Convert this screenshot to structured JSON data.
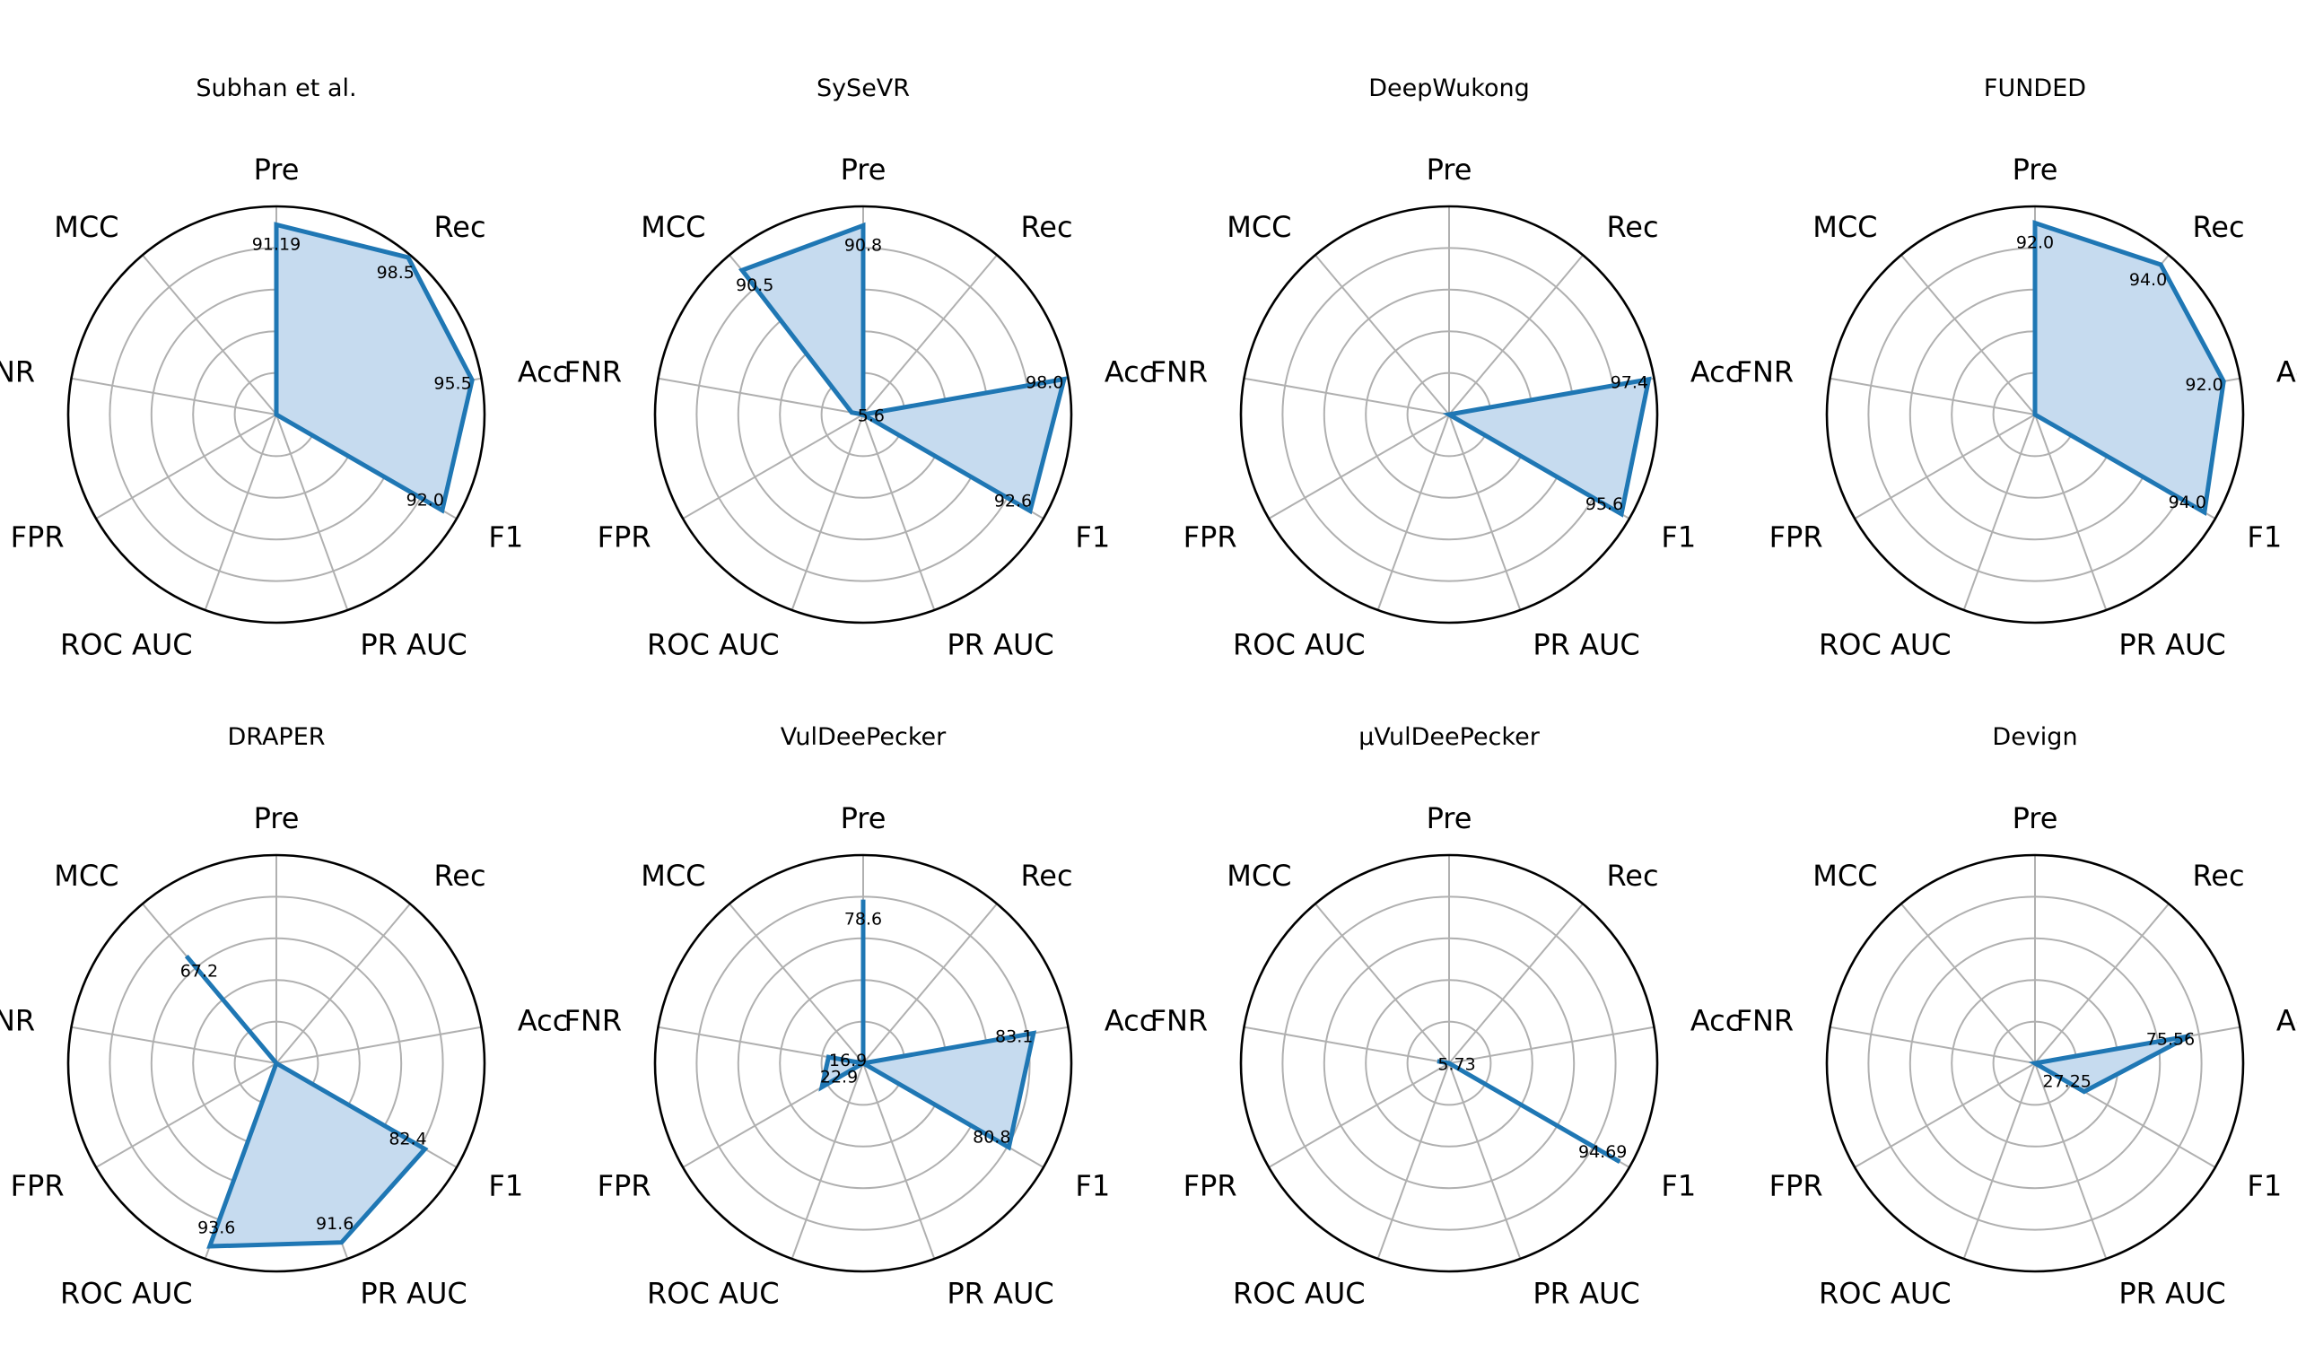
{
  "figure": {
    "background": "#ffffff",
    "series_color": "#1f77b4",
    "fill_color": "#c6dbef"
  },
  "chart_data": [
    {
      "type": "radar",
      "title": "Subhan et al.",
      "axes": [
        "Pre",
        "Rec",
        "Acc",
        "F1",
        "PR AUC",
        "ROC AUC",
        "FPR",
        "FNR",
        "MCC"
      ],
      "rlim": [
        0,
        100
      ],
      "values": [
        91.19,
        98.5,
        95.5,
        92.0,
        null,
        null,
        null,
        null,
        null
      ],
      "value_labels": [
        "91.19",
        "98.5",
        "95.5",
        "92.0",
        null,
        null,
        null,
        null,
        null
      ]
    },
    {
      "type": "radar",
      "title": "SySeVR",
      "axes": [
        "Pre",
        "Rec",
        "Acc",
        "F1",
        "PR AUC",
        "ROC AUC",
        "FPR",
        "FNR",
        "MCC"
      ],
      "rlim": [
        0,
        100
      ],
      "values": [
        90.8,
        null,
        98.0,
        92.6,
        null,
        null,
        null,
        5.6,
        90.5
      ],
      "value_labels": [
        "90.8",
        null,
        "98.0",
        "92.6",
        null,
        null,
        null,
        "5.6",
        "90.5"
      ]
    },
    {
      "type": "radar",
      "title": "DeepWukong",
      "axes": [
        "Pre",
        "Rec",
        "Acc",
        "F1",
        "PR AUC",
        "ROC AUC",
        "FPR",
        "FNR",
        "MCC"
      ],
      "rlim": [
        0,
        100
      ],
      "values": [
        null,
        null,
        97.4,
        95.6,
        null,
        null,
        null,
        null,
        null
      ],
      "value_labels": [
        null,
        null,
        "97.4",
        "95.6",
        null,
        null,
        null,
        null,
        null
      ]
    },
    {
      "type": "radar",
      "title": "FUNDED",
      "axes": [
        "Pre",
        "Rec",
        "Acc",
        "F1",
        "PR AUC",
        "ROC AUC",
        "FPR",
        "FNR",
        "MCC"
      ],
      "rlim": [
        0,
        100
      ],
      "values": [
        92.0,
        94.0,
        92.0,
        94.0,
        null,
        null,
        null,
        null,
        null
      ],
      "value_labels": [
        "92.0",
        "94.0",
        "92.0",
        "94.0",
        null,
        null,
        null,
        null,
        null
      ]
    },
    {
      "type": "radar",
      "title": "DRAPER",
      "axes": [
        "Pre",
        "Rec",
        "Acc",
        "F1",
        "PR AUC",
        "ROC AUC",
        "FPR",
        "FNR",
        "MCC"
      ],
      "rlim": [
        0,
        100
      ],
      "values": [
        null,
        null,
        null,
        82.4,
        91.6,
        93.6,
        null,
        null,
        67.2
      ],
      "value_labels": [
        null,
        null,
        null,
        "82.4",
        "91.6",
        "93.6",
        null,
        null,
        "67.2"
      ]
    },
    {
      "type": "radar",
      "title": "VulDeePecker",
      "axes": [
        "Pre",
        "Rec",
        "Acc",
        "F1",
        "PR AUC",
        "ROC AUC",
        "FPR",
        "FNR",
        "MCC"
      ],
      "rlim": [
        0,
        100
      ],
      "values": [
        78.6,
        null,
        83.1,
        80.8,
        null,
        null,
        22.9,
        16.9,
        null
      ],
      "value_labels": [
        "78.6",
        null,
        "83.1",
        "80.8",
        null,
        null,
        "22.9",
        "16.9",
        null
      ]
    },
    {
      "type": "radar",
      "title": "μVulDeePecker",
      "axes": [
        "Pre",
        "Rec",
        "Acc",
        "F1",
        "PR AUC",
        "ROC AUC",
        "FPR",
        "FNR",
        "MCC"
      ],
      "rlim": [
        0,
        100
      ],
      "values": [
        null,
        null,
        null,
        94.69,
        null,
        null,
        null,
        5.73,
        null
      ],
      "value_labels": [
        null,
        null,
        null,
        "94.69",
        null,
        null,
        null,
        "5.73",
        null
      ]
    },
    {
      "type": "radar",
      "title": "Devign",
      "axes": [
        "Pre",
        "Rec",
        "Acc",
        "F1",
        "PR AUC",
        "ROC AUC",
        "FPR",
        "FNR",
        "MCC"
      ],
      "rlim": [
        0,
        100
      ],
      "values": [
        null,
        null,
        75.56,
        27.25,
        null,
        null,
        null,
        null,
        null
      ],
      "value_labels": [
        null,
        null,
        "75.56",
        "27.25",
        null,
        null,
        null,
        null,
        null
      ]
    }
  ]
}
